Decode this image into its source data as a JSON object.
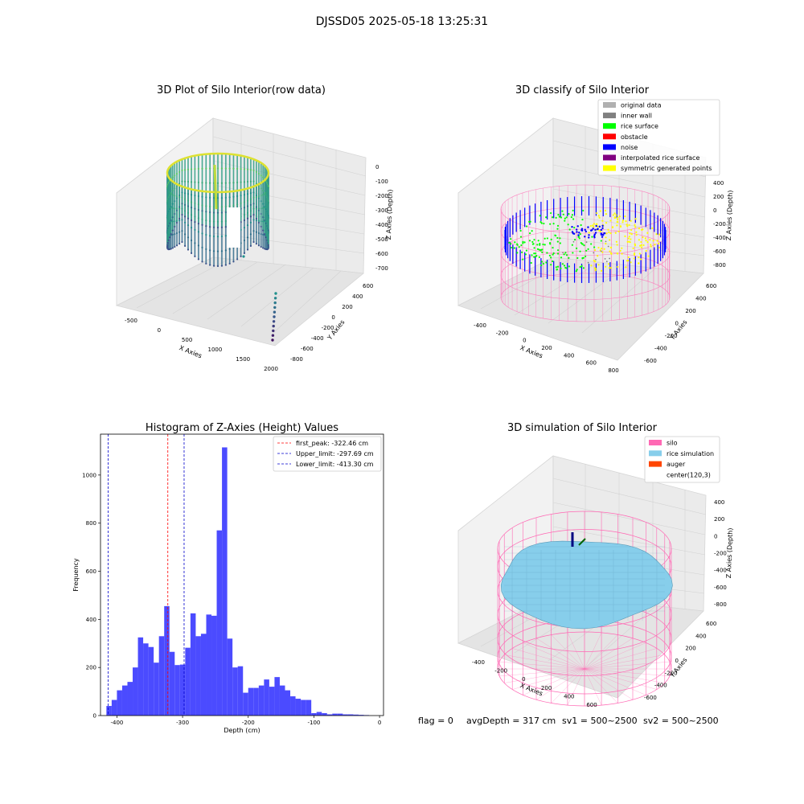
{
  "figure": {
    "suptitle": "DJSSD05 2025-05-18 13:25:31",
    "footer": {
      "flag": "flag = 0",
      "avg_depth": "avgDepth = 317 cm",
      "sv1": "sv1 = 500~2500",
      "sv2": "sv2 = 500~2500"
    }
  },
  "colors": {
    "original": "#b0b0b0",
    "inner_wall": "#808080",
    "rice_surface": "#00ff00",
    "obstacle": "#ff0000",
    "noise": "#0000ff",
    "interpolated": "#800080",
    "symmetric": "#ffff00",
    "silo": "#ff69b4",
    "rice_sim": "#87ceeb",
    "auger": "#ff4500",
    "hist_bar": "#4b4bff",
    "first_peak": "#ff0000",
    "limit": "#0000cc"
  },
  "chart_data": [
    {
      "type": "scatter3d",
      "title": "3D Plot of Silo Interior(row data)",
      "xlabel": "X Axies",
      "ylabel": "Y Axies",
      "zlabel": "Z Axies (Depth)",
      "xticks": [
        "-500",
        "0",
        "500",
        "1000",
        "1500",
        "2000"
      ],
      "yticks": [
        "600",
        "400",
        "200",
        "0",
        "-200",
        "-400",
        "-600",
        "-800"
      ],
      "zticks": [
        "0",
        "-100",
        "-200",
        "-300",
        "-400",
        "-500",
        "-600",
        "-700"
      ]
    },
    {
      "type": "scatter3d",
      "title": "3D classify of Silo Interior",
      "xlabel": "X Axies",
      "ylabel": "Y Axies",
      "zlabel": "Z Axies (Depth)",
      "xticks": [
        "-400",
        "-200",
        "0",
        "200",
        "400",
        "600",
        "800"
      ],
      "yticks": [
        "600",
        "400",
        "200",
        "0",
        "-200",
        "-400",
        "-600"
      ],
      "zticks": [
        "400",
        "200",
        "0",
        "-200",
        "-400",
        "-600",
        "-800"
      ],
      "legend": {
        "position": "top-right",
        "entries": [
          {
            "label": "original data",
            "color": "#b0b0b0"
          },
          {
            "label": "inner wall",
            "color": "#808080"
          },
          {
            "label": "rice surface",
            "color": "#00ff00"
          },
          {
            "label": "obstacle",
            "color": "#ff0000"
          },
          {
            "label": "noise",
            "color": "#0000ff"
          },
          {
            "label": "interpolated rice surface",
            "color": "#800080"
          },
          {
            "label": "symmetric generated points",
            "color": "#ffff00"
          }
        ]
      }
    },
    {
      "type": "bar",
      "title": "Histogram of Z-Axies (Height) Values",
      "xlabel": "Depth (cm)",
      "ylabel": "Frequency",
      "xlim": [
        -425,
        6
      ],
      "ylim": [
        0,
        1170
      ],
      "xticks": [
        -400,
        -300,
        -200,
        -100,
        0
      ],
      "yticks": [
        0,
        200,
        400,
        600,
        800,
        1000
      ],
      "bins": {
        "start": -416,
        "width": 8.0,
        "counts": [
          40,
          65,
          105,
          125,
          140,
          200,
          325,
          300,
          285,
          220,
          330,
          455,
          265,
          210,
          212,
          282,
          425,
          330,
          340,
          420,
          415,
          770,
          1115,
          320,
          200,
          205,
          95,
          115,
          115,
          125,
          150,
          120,
          160,
          125,
          105,
          80,
          70,
          65,
          65,
          10,
          15,
          10,
          5,
          8,
          8,
          5,
          5,
          4,
          3,
          2
        ]
      },
      "lines": [
        {
          "x": -322.46,
          "color": "#ff0000",
          "label": "first_peak: -322.46 cm"
        },
        {
          "x": -297.69,
          "color": "#0000cc",
          "label": "Upper_limit: -297.69 cm"
        },
        {
          "x": -413.3,
          "color": "#0000cc",
          "label": "Lower_limit: -413.30 cm"
        }
      ],
      "legend": {
        "position": "top-right"
      }
    },
    {
      "type": "surface3d",
      "title": "3D simulation of Silo Interior",
      "xlabel": "X Axies",
      "ylabel": "Y Axies",
      "zlabel": "Z Axies (Depth)",
      "xticks": [
        "-400",
        "-200",
        "0",
        "200",
        "400",
        "600"
      ],
      "yticks": [
        "600",
        "400",
        "200",
        "0",
        "-200",
        "-400",
        "-600"
      ],
      "zticks": [
        "400",
        "200",
        "0",
        "-200",
        "-400",
        "-600",
        "-800"
      ],
      "legend": {
        "position": "top-right",
        "entries": [
          {
            "label": "silo",
            "color": "#ff69b4"
          },
          {
            "label": "rice simulation",
            "color": "#87ceeb"
          },
          {
            "label": "auger",
            "color": "#ff4500"
          },
          {
            "label": "center(120,3)",
            "color": "#ffffff"
          }
        ]
      }
    }
  ]
}
